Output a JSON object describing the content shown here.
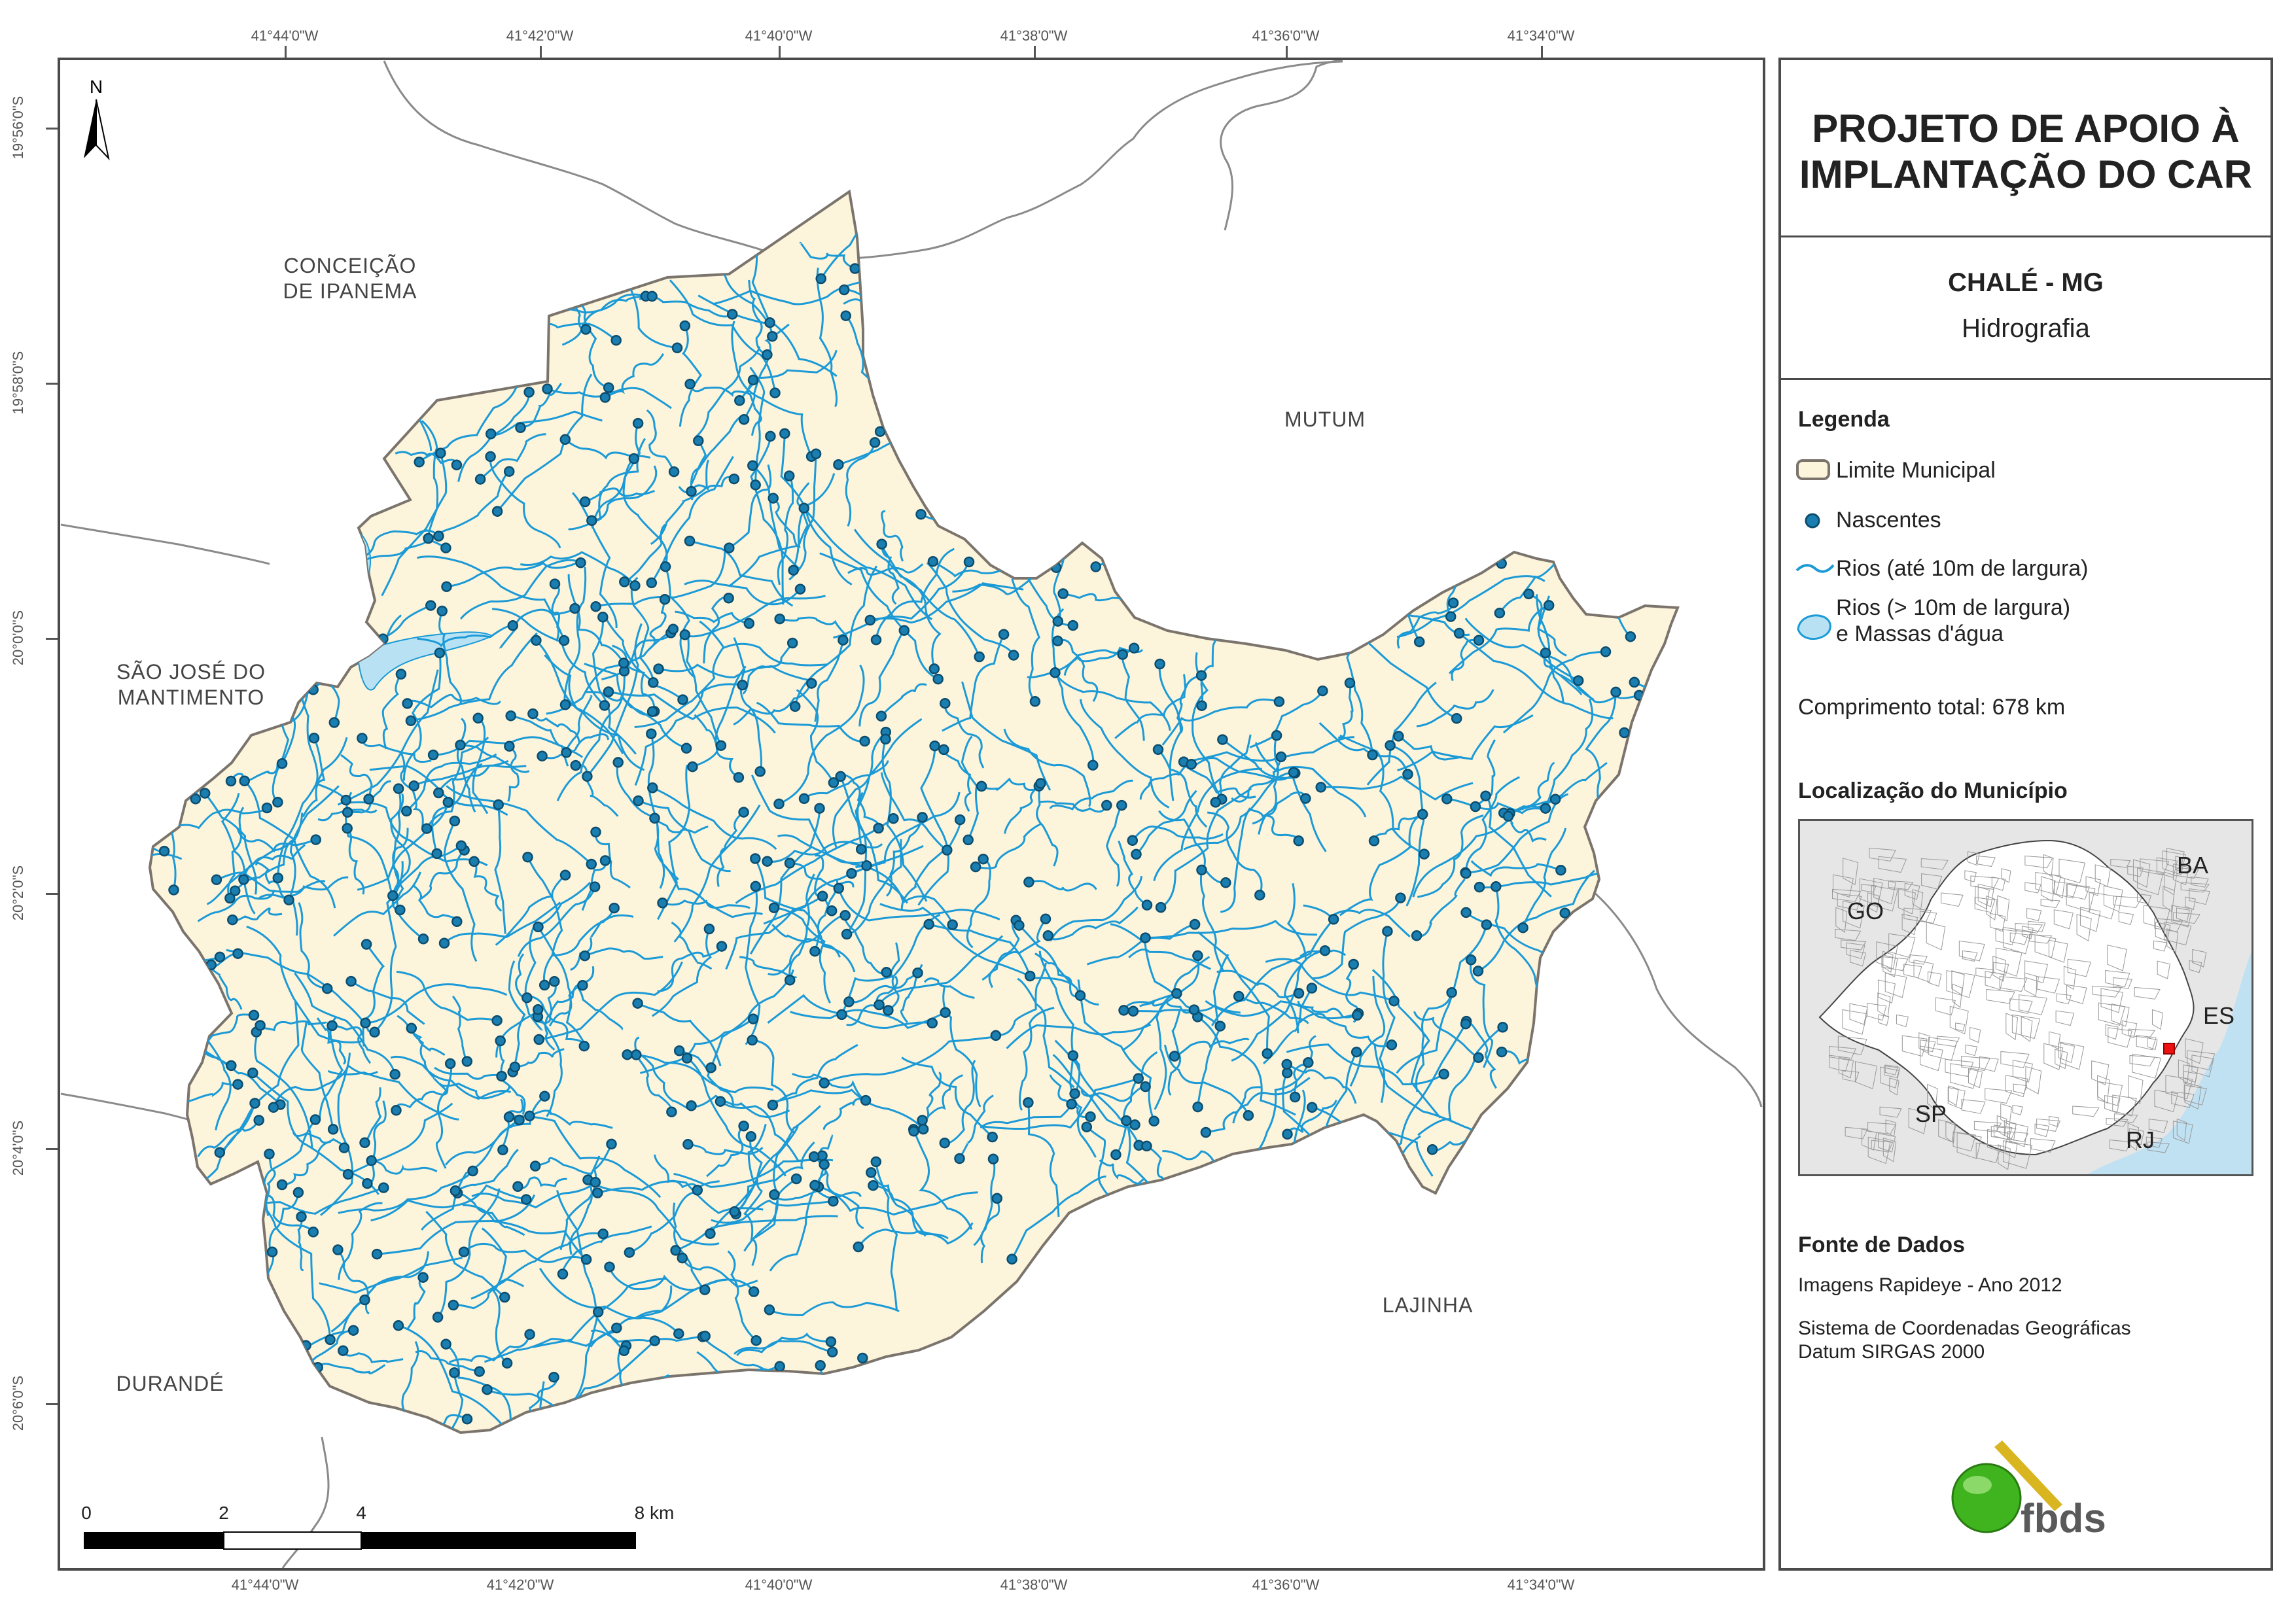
{
  "title_lines": [
    "PROJETO DE APOIO À",
    "IMPLANTAÇÃO DO CAR"
  ],
  "municipality": "CHALÉ - MG",
  "theme": "Hidrografia",
  "legend": {
    "heading": "Legenda",
    "items": [
      {
        "label": "Limite Municipal",
        "symbol": "municipal-boundary"
      },
      {
        "label": "Nascentes",
        "symbol": "spring-point"
      },
      {
        "label": "Rios (até 10m de largura)",
        "symbol": "river-line"
      },
      {
        "label_lines": [
          "Rios (> 10m de largura)",
          "e Massas d'água"
        ],
        "symbol": "water-polygon"
      }
    ],
    "total_length": "Comprimento total: 678 km"
  },
  "location": {
    "heading": "Localização do Município",
    "labels": [
      "GO",
      "BA",
      "ES",
      "SP",
      "RJ"
    ]
  },
  "sources": {
    "heading": "Fonte de Dados",
    "lines": [
      "Imagens Rapideye - Ano 2012",
      "Sistema de Coordenadas Geográficas",
      "Datum SIRGAS 2000"
    ]
  },
  "logo_text": "fbds",
  "longitude_labels": [
    "41°44'0\"W",
    "41°42'0\"W",
    "41°40'0\"W",
    "41°38'0\"W",
    "41°36'0\"W",
    "41°34'0\"W"
  ],
  "latitude_labels": [
    "19°56'0\"S",
    "19°58'0\"S",
    "20°0'0\"S",
    "20°2'0\"S",
    "20°4'0\"S",
    "20°6'0\"S"
  ],
  "neighbors": {
    "conceicao": [
      "CONCEIÇÃO",
      "DE IPANEMA"
    ],
    "mutum": "MUTUM",
    "sao_jose": [
      "SÃO JOSÉ DO",
      "MANTIMENTO"
    ],
    "lajinha": "LAJINHA",
    "durande": "DURANDÉ"
  },
  "north_arrow": "N",
  "scale_bar": {
    "labels": [
      "0",
      "2",
      "4",
      "8 km"
    ]
  },
  "colors": {
    "municipality_fill": "#fdf4dc",
    "boundary": "#7a746c",
    "river": "#1b9ad6",
    "spring": "#1a7fb0",
    "water_body": "#b8e2f4",
    "inset_sea": "#bfe1f2",
    "inset_land": "#e6e6e6",
    "logo_green": "#3fb41e",
    "logo_gold": "#d9b520"
  }
}
